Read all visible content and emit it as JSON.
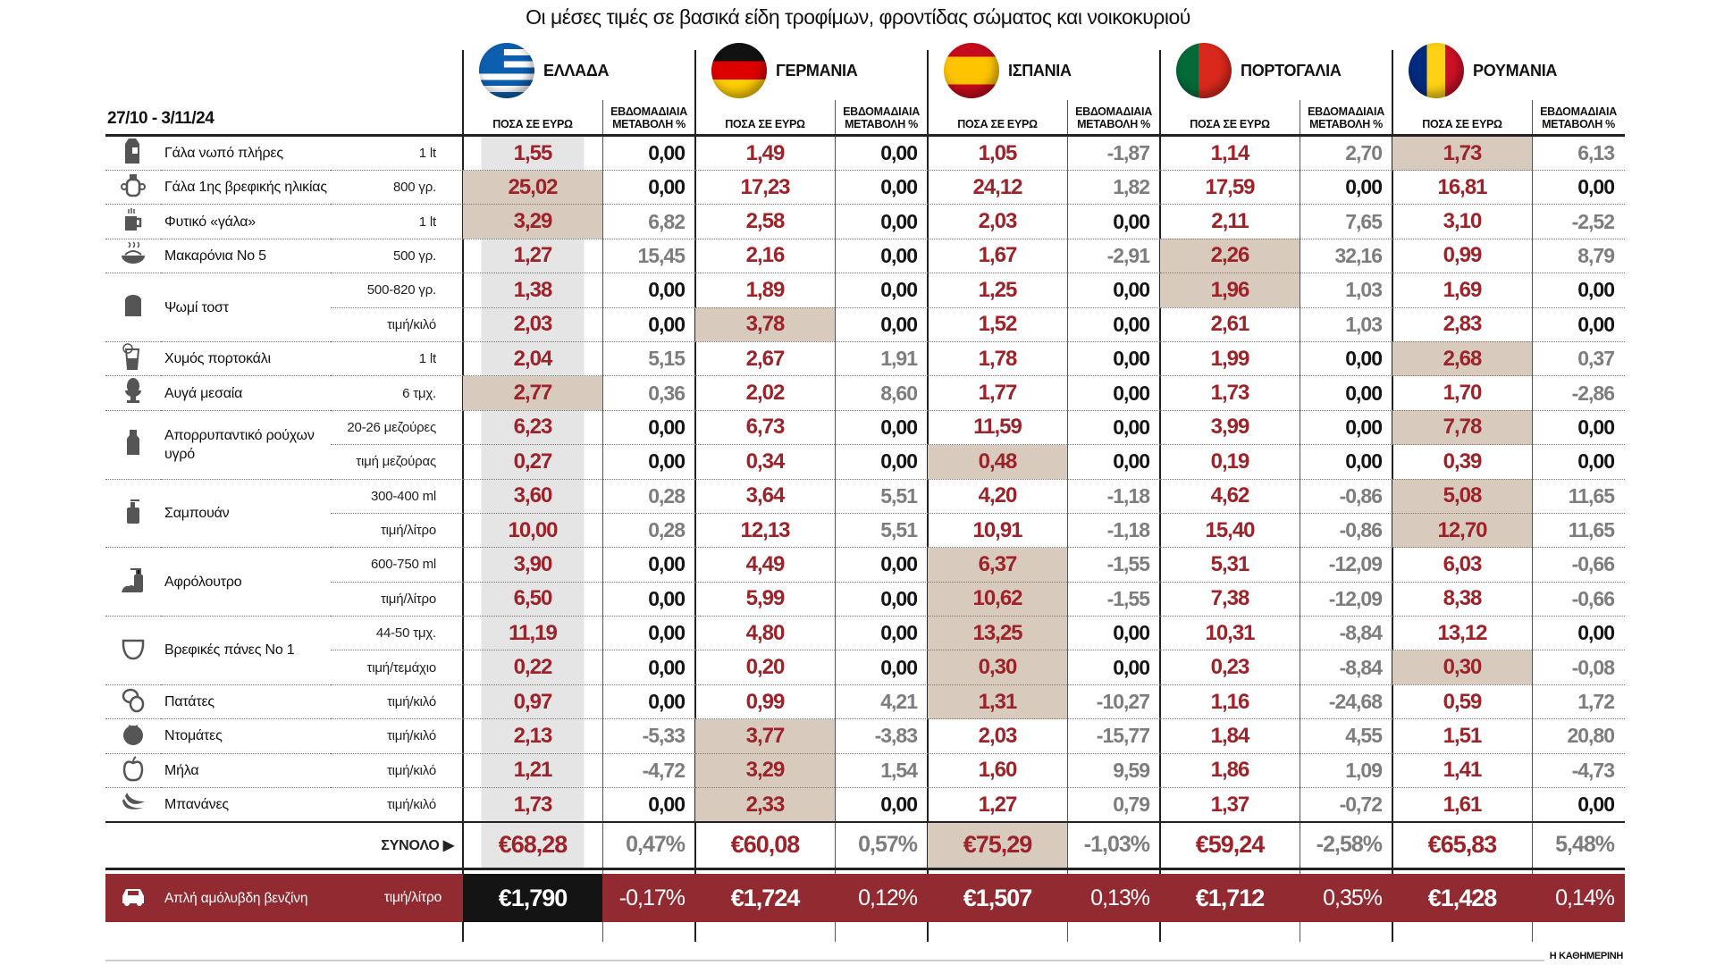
{
  "title": "Οι μέσες τιμές σε βασικά είδη τροφίμων, φροντίδας σώματος και νοικοκυριού",
  "date_range": "27/10 - 3/11/24",
  "price_header": "ΠΟΣΑ ΣΕ ΕΥΡΩ",
  "change_header": "ΕΒΔΟΜΑΔΙΑΙΑ ΜΕΤΑΒΟΛΗ %",
  "source": "Η ΚΑΘΗΜΕΡΙΝΗ",
  "colors": {
    "price_text": "#9c2329",
    "highlight": "#d8cbbd",
    "greece_column": "#e5e5e5",
    "fuel_row": "#922b31",
    "change_nonzero": "#7d7d7d"
  },
  "countries": [
    {
      "name": "ΕΛΛΑΔΑ",
      "flag": "greece-flag"
    },
    {
      "name": "ΓΕΡΜΑΝΙΑ",
      "flag": "germany-flag"
    },
    {
      "name": "ΙΣΠΑΝΙΑ",
      "flag": "spain-flag"
    },
    {
      "name": "ΠΟΡΤΟΓΑΛΙΑ",
      "flag": "portugal-flag"
    },
    {
      "name": "ΡΟΥΜΑΝΙΑ",
      "flag": "romania-flag"
    }
  ],
  "chart_data": {
    "type": "table",
    "title": "Οι μέσες τιμές σε βασικά είδη τροφίμων, φροντίδας σώματος και νοικοκυριού",
    "products": [
      {
        "name": "Γάλα νωπό πλήρες",
        "icon": "milk-carton-icon",
        "rows": [
          {
            "unit": "1 lt",
            "values": [
              [
                "1,55",
                "0,00"
              ],
              [
                "1,49",
                "0,00"
              ],
              [
                "1,05",
                "-1,87"
              ],
              [
                "1,14",
                "2,70"
              ],
              [
                "1,73",
                "6,13"
              ]
            ],
            "highlight": [
              4
            ]
          }
        ]
      },
      {
        "name": "Γάλα 1ης βρεφικής ηλικίας",
        "icon": "baby-cup-icon",
        "rows": [
          {
            "unit": "800 γρ.",
            "values": [
              [
                "25,02",
                "0,00"
              ],
              [
                "17,23",
                "0,00"
              ],
              [
                "24,12",
                "1,82"
              ],
              [
                "17,59",
                "0,00"
              ],
              [
                "16,81",
                "0,00"
              ]
            ],
            "highlight": [
              0
            ]
          }
        ]
      },
      {
        "name": "Φυτικό «γάλα»",
        "icon": "mug-icon",
        "rows": [
          {
            "unit": "1 lt",
            "values": [
              [
                "3,29",
                "6,82"
              ],
              [
                "2,58",
                "0,00"
              ],
              [
                "2,03",
                "0,00"
              ],
              [
                "2,11",
                "7,65"
              ],
              [
                "3,10",
                "-2,52"
              ]
            ],
            "highlight": [
              0
            ]
          }
        ]
      },
      {
        "name": "Μακαρόνια Νο 5",
        "icon": "pasta-bowl-icon",
        "rows": [
          {
            "unit": "500 γρ.",
            "values": [
              [
                "1,27",
                "15,45"
              ],
              [
                "2,16",
                "0,00"
              ],
              [
                "1,67",
                "-2,91"
              ],
              [
                "2,26",
                "32,16"
              ],
              [
                "0,99",
                "8,79"
              ]
            ],
            "highlight": [
              3
            ]
          }
        ]
      },
      {
        "name": "Ψωμί τοστ",
        "icon": "bread-icon",
        "rows": [
          {
            "unit": "500-820 γρ.",
            "values": [
              [
                "1,38",
                "0,00"
              ],
              [
                "1,89",
                "0,00"
              ],
              [
                "1,25",
                "0,00"
              ],
              [
                "1,96",
                "1,03"
              ],
              [
                "1,69",
                "0,00"
              ]
            ],
            "highlight": [
              3
            ]
          },
          {
            "unit": "τιμή/κιλό",
            "values": [
              [
                "2,03",
                "0,00"
              ],
              [
                "3,78",
                "0,00"
              ],
              [
                "1,52",
                "0,00"
              ],
              [
                "2,61",
                "1,03"
              ],
              [
                "2,83",
                "0,00"
              ]
            ],
            "highlight": [
              1
            ]
          }
        ]
      },
      {
        "name": "Χυμός πορτοκάλι",
        "icon": "juice-glass-icon",
        "rows": [
          {
            "unit": "1 lt",
            "values": [
              [
                "2,04",
                "5,15"
              ],
              [
                "2,67",
                "1,91"
              ],
              [
                "1,78",
                "0,00"
              ],
              [
                "1,99",
                "0,00"
              ],
              [
                "2,68",
                "0,37"
              ]
            ],
            "highlight": [
              4
            ]
          }
        ]
      },
      {
        "name": "Αυγά μεσαία",
        "icon": "egg-cup-icon",
        "rows": [
          {
            "unit": "6 τμχ.",
            "values": [
              [
                "2,77",
                "0,36"
              ],
              [
                "2,02",
                "8,60"
              ],
              [
                "1,77",
                "0,00"
              ],
              [
                "1,73",
                "0,00"
              ],
              [
                "1,70",
                "-2,86"
              ]
            ],
            "highlight": [
              0
            ]
          }
        ]
      },
      {
        "name": "Απορρυπαντικό ρούχων υγρό",
        "icon": "detergent-bottle-icon",
        "rows": [
          {
            "unit": "20-26 μεζούρες",
            "values": [
              [
                "6,23",
                "0,00"
              ],
              [
                "6,73",
                "0,00"
              ],
              [
                "11,59",
                "0,00"
              ],
              [
                "3,99",
                "0,00"
              ],
              [
                "7,78",
                "0,00"
              ]
            ],
            "highlight": [
              4
            ]
          },
          {
            "unit": "τιμή μεζούρας",
            "values": [
              [
                "0,27",
                "0,00"
              ],
              [
                "0,34",
                "0,00"
              ],
              [
                "0,48",
                "0,00"
              ],
              [
                "0,19",
                "0,00"
              ],
              [
                "0,39",
                "0,00"
              ]
            ],
            "highlight": [
              2
            ]
          }
        ]
      },
      {
        "name": "Σαμπουάν",
        "icon": "shampoo-pump-icon",
        "rows": [
          {
            "unit": "300-400 ml",
            "values": [
              [
                "3,60",
                "0,28"
              ],
              [
                "3,64",
                "5,51"
              ],
              [
                "4,20",
                "-1,18"
              ],
              [
                "4,62",
                "-0,86"
              ],
              [
                "5,08",
                "11,65"
              ]
            ],
            "highlight": [
              4
            ]
          },
          {
            "unit": "τιμή/λίτρο",
            "values": [
              [
                "10,00",
                "0,28"
              ],
              [
                "12,13",
                "5,51"
              ],
              [
                "10,91",
                "-1,18"
              ],
              [
                "15,40",
                "-0,86"
              ],
              [
                "12,70",
                "11,65"
              ]
            ],
            "highlight": [
              4
            ]
          }
        ]
      },
      {
        "name": "Αφρόλουτρο",
        "icon": "shower-gel-icon",
        "rows": [
          {
            "unit": "600-750 ml",
            "values": [
              [
                "3,90",
                "0,00"
              ],
              [
                "4,49",
                "0,00"
              ],
              [
                "6,37",
                "-1,55"
              ],
              [
                "5,31",
                "-12,09"
              ],
              [
                "6,03",
                "-0,66"
              ]
            ],
            "highlight": [
              2
            ]
          },
          {
            "unit": "τιμή/λίτρο",
            "values": [
              [
                "6,50",
                "0,00"
              ],
              [
                "5,99",
                "0,00"
              ],
              [
                "10,62",
                "-1,55"
              ],
              [
                "7,38",
                "-12,09"
              ],
              [
                "8,38",
                "-0,66"
              ]
            ],
            "highlight": [
              2
            ]
          }
        ]
      },
      {
        "name": "Βρεφικές πάνες Νο 1",
        "icon": "diaper-icon",
        "rows": [
          {
            "unit": "44-50 τμχ.",
            "values": [
              [
                "11,19",
                "0,00"
              ],
              [
                "4,80",
                "0,00"
              ],
              [
                "13,25",
                "0,00"
              ],
              [
                "10,31",
                "-8,84"
              ],
              [
                "13,12",
                "0,00"
              ]
            ],
            "highlight": [
              2
            ]
          },
          {
            "unit": "τιμή/τεμάχιο",
            "values": [
              [
                "0,22",
                "0,00"
              ],
              [
                "0,20",
                "0,00"
              ],
              [
                "0,30",
                "0,00"
              ],
              [
                "0,23",
                "-8,84"
              ],
              [
                "0,30",
                "-0,08"
              ]
            ],
            "highlight": [
              2,
              4
            ]
          }
        ]
      },
      {
        "name": "Πατάτες",
        "icon": "potato-icon",
        "rows": [
          {
            "unit": "τιμή/κιλό",
            "values": [
              [
                "0,97",
                "0,00"
              ],
              [
                "0,99",
                "4,21"
              ],
              [
                "1,31",
                "-10,27"
              ],
              [
                "1,16",
                "-24,68"
              ],
              [
                "0,59",
                "1,72"
              ]
            ],
            "highlight": [
              2
            ]
          }
        ]
      },
      {
        "name": "Ντομάτες",
        "icon": "tomato-icon",
        "rows": [
          {
            "unit": "τιμή/κιλό",
            "values": [
              [
                "2,13",
                "-5,33"
              ],
              [
                "3,77",
                "-3,83"
              ],
              [
                "2,03",
                "-15,77"
              ],
              [
                "1,84",
                "4,55"
              ],
              [
                "1,51",
                "20,80"
              ]
            ],
            "highlight": [
              1
            ]
          }
        ]
      },
      {
        "name": "Μήλα",
        "icon": "apple-icon",
        "rows": [
          {
            "unit": "τιμή/κιλό",
            "values": [
              [
                "1,21",
                "-4,72"
              ],
              [
                "3,29",
                "1,54"
              ],
              [
                "1,60",
                "9,59"
              ],
              [
                "1,86",
                "1,09"
              ],
              [
                "1,41",
                "-4,73"
              ]
            ],
            "highlight": [
              1
            ]
          }
        ]
      },
      {
        "name": "Μπανάνες",
        "icon": "banana-icon",
        "rows": [
          {
            "unit": "τιμή/κιλό",
            "values": [
              [
                "1,73",
                "0,00"
              ],
              [
                "2,33",
                "0,00"
              ],
              [
                "1,27",
                "0,79"
              ],
              [
                "1,37",
                "-0,72"
              ],
              [
                "1,61",
                "0,00"
              ]
            ],
            "highlight": [
              1
            ]
          }
        ]
      }
    ],
    "total": {
      "label": "ΣΥΝΟΛΟ",
      "values": [
        [
          "€68,28",
          "0,47%"
        ],
        [
          "€60,08",
          "0,57%"
        ],
        [
          "€75,29",
          "-1,03%"
        ],
        [
          "€59,24",
          "-2,58%"
        ],
        [
          "€65,83",
          "5,48%"
        ]
      ],
      "highlight": [
        2
      ]
    },
    "fuel": {
      "name": "Απλή αμόλυβδη βενζίνη",
      "unit": "τιμή/λίτρο",
      "icon": "car-icon",
      "values": [
        [
          "€1,790",
          "-0,17%"
        ],
        [
          "€1,724",
          "0,12%"
        ],
        [
          "€1,507",
          "0,13%"
        ],
        [
          "€1,712",
          "0,35%"
        ],
        [
          "€1,428",
          "0,14%"
        ]
      ]
    }
  }
}
